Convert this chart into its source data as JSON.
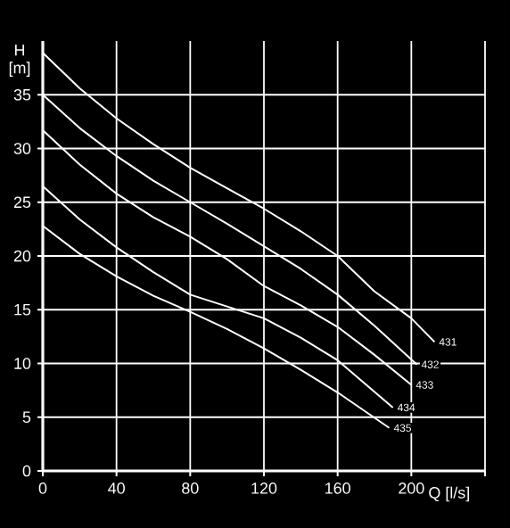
{
  "chart_data": {
    "type": "line",
    "xlabel": "Q [l/s]",
    "ylabel": "H [m]",
    "xlim": [
      0,
      240
    ],
    "ylim": [
      0,
      40
    ],
    "xticks": [
      0,
      40,
      80,
      120,
      160,
      200,
      {
        "value": 240,
        "label": null
      }
    ],
    "yticks": [
      0,
      5,
      10,
      15,
      20,
      25,
      30,
      35
    ],
    "grid": true,
    "marker": "none",
    "line_style": "solid",
    "series": [
      {
        "name": "431",
        "color": "#ffffff",
        "x": [
          0,
          20,
          40,
          60,
          80,
          100,
          120,
          140,
          160,
          180,
          200,
          212.6
        ],
        "values": [
          38.9,
          35.6,
          32.8,
          30.4,
          28.2,
          26.3,
          24.4,
          22.3,
          20.0,
          16.7,
          14.2,
          12.0
        ]
      },
      {
        "name": "432",
        "color": "#ffffff",
        "x": [
          0,
          20,
          40,
          60,
          80,
          100,
          120,
          140,
          160,
          180,
          203
        ],
        "values": [
          35.0,
          31.9,
          29.3,
          27.0,
          25.0,
          23.0,
          20.9,
          18.8,
          16.4,
          13.5,
          9.9
        ]
      },
      {
        "name": "433",
        "color": "#ffffff",
        "x": [
          0,
          20,
          40,
          60,
          80,
          100,
          120,
          140,
          160,
          180,
          200
        ],
        "values": [
          31.7,
          28.5,
          25.8,
          23.6,
          21.8,
          19.7,
          17.2,
          15.4,
          13.4,
          10.8,
          8.0
        ]
      },
      {
        "name": "434",
        "color": "#ffffff",
        "x": [
          0,
          20,
          40,
          60,
          80,
          100,
          120,
          140,
          160,
          190
        ],
        "values": [
          26.5,
          23.4,
          20.8,
          18.5,
          16.4,
          15.3,
          14.2,
          12.4,
          10.3,
          5.9
        ]
      },
      {
        "name": "435",
        "color": "#ffffff",
        "x": [
          0,
          20,
          40,
          60,
          80,
          100,
          120,
          140,
          160,
          188
        ],
        "values": [
          22.8,
          20.2,
          18.1,
          16.3,
          14.8,
          13.2,
          11.4,
          9.4,
          7.3,
          4.0
        ]
      }
    ]
  }
}
